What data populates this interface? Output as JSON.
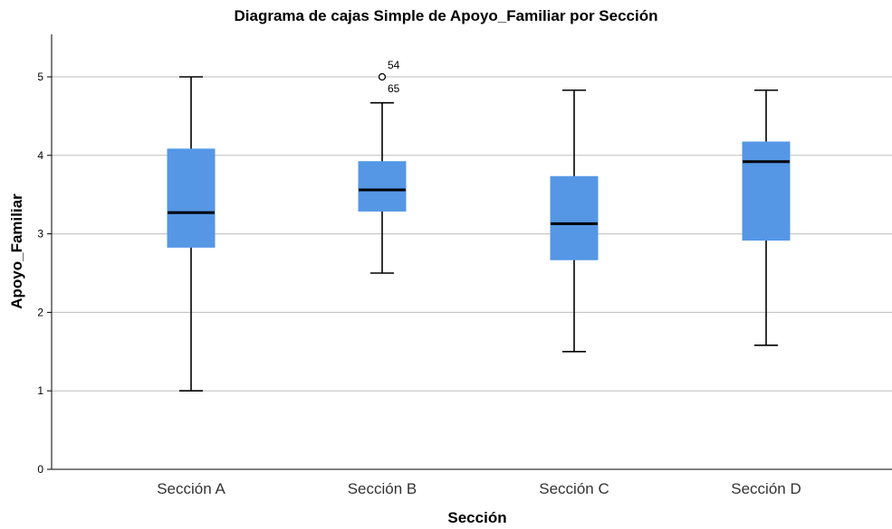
{
  "chart_data": {
    "type": "boxplot",
    "title": "Diagrama de cajas Simple de Apoyo_Familiar por Sección",
    "xlabel": "Sección",
    "ylabel": "Apoyo_Familiar",
    "ylim": [
      0,
      5.5
    ],
    "yticks": [
      "0",
      "1",
      "2",
      "3",
      "4",
      "5"
    ],
    "categories": [
      "Sección A",
      "Sección B",
      "Sección C",
      "Sección D"
    ],
    "boxes": [
      {
        "min": 1.0,
        "q1": 2.83,
        "median": 3.27,
        "q3": 4.08,
        "max": 5.0,
        "outliers": []
      },
      {
        "min": 2.5,
        "q1": 3.29,
        "median": 3.56,
        "q3": 3.92,
        "max": 4.67,
        "outliers": [
          {
            "value": 5.0,
            "labels": [
              "54",
              "65"
            ]
          }
        ]
      },
      {
        "min": 1.5,
        "q1": 2.67,
        "median": 3.13,
        "q3": 3.73,
        "max": 4.83,
        "outliers": []
      },
      {
        "min": 1.58,
        "q1": 2.92,
        "median": 3.92,
        "q3": 4.17,
        "max": 4.83,
        "outliers": []
      }
    ],
    "box_color": "#5597e5",
    "grid": true
  }
}
